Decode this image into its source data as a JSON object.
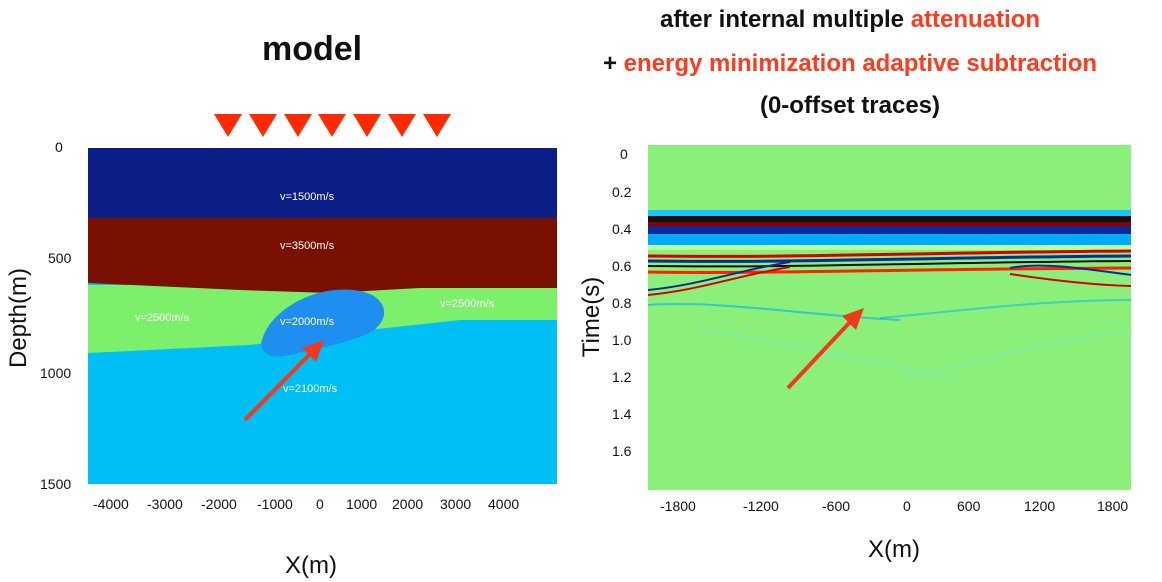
{
  "left_panel": {
    "title": "model",
    "y_axis_label": "Depth(m)",
    "x_axis_label": "X(m)",
    "y_ticks": [
      "0",
      "500",
      "1000",
      "1500"
    ],
    "x_ticks": [
      "-4000",
      "-3000",
      "-2000",
      "-1000",
      "0",
      "1000",
      "2000",
      "3000",
      "4000"
    ],
    "layers": [
      {
        "label": "v=1500m/s",
        "color": "#0a1e86"
      },
      {
        "label": "v=3500m/s",
        "color": "#7a1100"
      },
      {
        "label": "v=2500m/s",
        "color": "#7cf06a"
      },
      {
        "label": "v=2500m/s",
        "color": "#7cf06a"
      },
      {
        "label": "v=2000m/s",
        "color": "#1e8ef0"
      },
      {
        "label": "v=2100m/s",
        "color": "#00bff5"
      }
    ],
    "source_markers_color": "#ff2a00",
    "arrow_color": "#f03a1e"
  },
  "right_panel": {
    "title_line1_prefix": "after internal multiple ",
    "title_line1_highlight": "attenuation",
    "title_line2_prefix": "+ ",
    "title_line2_highlight": "energy minimization adaptive subtraction",
    "title_line3": "(0-offset traces)",
    "y_axis_label": "Time(s)",
    "x_axis_label": "X(m)",
    "y_ticks": [
      "0",
      "0.2",
      "0.4",
      "0.6",
      "0.8",
      "1.0",
      "1.2",
      "1.4",
      "1.6"
    ],
    "x_ticks": [
      "-1800",
      "-1200",
      "-600",
      "0",
      "600",
      "1200",
      "1800"
    ],
    "background_color": "#8bf07a",
    "arrow_color": "#f03a1e"
  }
}
